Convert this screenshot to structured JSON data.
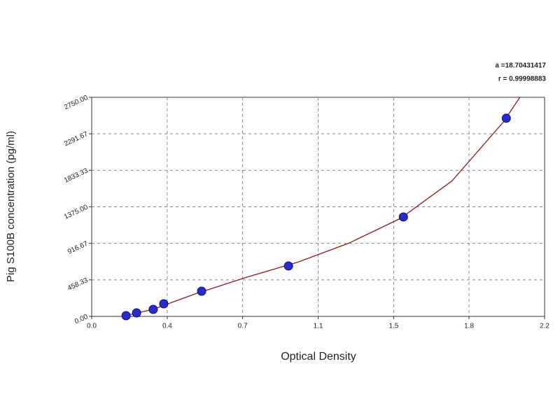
{
  "chart_data": {
    "type": "scatter",
    "x_label": "Optical Density",
    "y_label": "Pig S100B concentration (pg/ml)",
    "annotations": [
      "a =18.70431417",
      "r = 0.99998883"
    ],
    "xlim": [
      0,
      2.2
    ],
    "ylim": [
      0,
      2750
    ],
    "xticks": [
      {
        "value": 0,
        "label": "0.0"
      },
      {
        "value": 0.367,
        "label": "0.4"
      },
      {
        "value": 0.733,
        "label": "0.7"
      },
      {
        "value": 1.1,
        "label": "1.1"
      },
      {
        "value": 1.467,
        "label": "1.5"
      },
      {
        "value": 1.833,
        "label": "1.8"
      },
      2.2
    ],
    "yticks": [
      {
        "value": 0,
        "label": "0.00"
      },
      458.33,
      {
        "value": 916.67,
        "label": "916.67"
      },
      {
        "value": 1375,
        "label": "1375.00"
      },
      1833.33,
      2291.67,
      {
        "value": 2750,
        "label": "2750.00"
      }
    ],
    "grid": true,
    "points": {
      "color": "#2a2ad0",
      "x": [
        0.167,
        0.218,
        0.299,
        0.35,
        0.534,
        0.956,
        1.514,
        2.014
      ],
      "values": [
        9,
        44,
        88,
        158,
        316,
        633,
        1248,
        2487
      ]
    },
    "fit": {
      "color": "#8b1a1a",
      "x": [
        0.15,
        0.3,
        0.5,
        0.75,
        1.0,
        1.25,
        1.5,
        1.75,
        2.0,
        2.08
      ],
      "values": [
        0,
        90,
        280,
        490,
        680,
        920,
        1230,
        1700,
        2440,
        2750
      ]
    }
  }
}
